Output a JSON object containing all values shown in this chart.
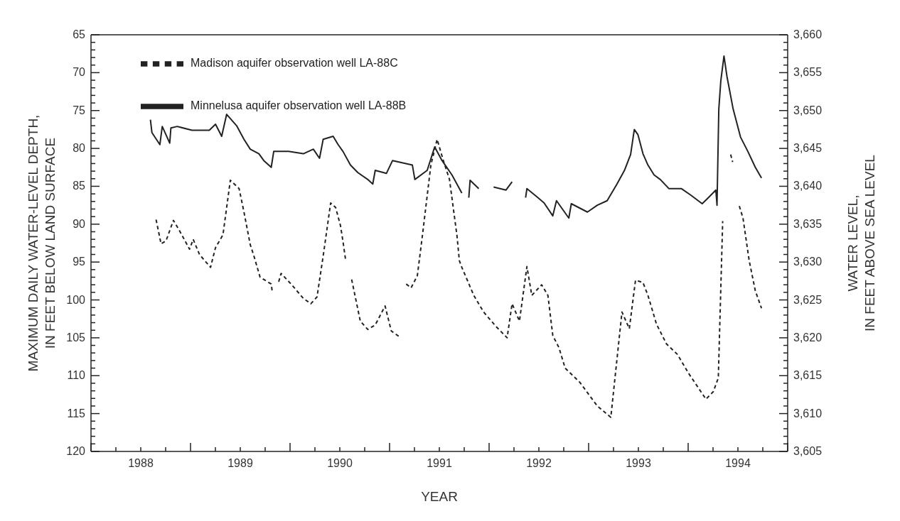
{
  "chart_data": {
    "type": "line",
    "xlabel": "YEAR",
    "ylabel": "MAXIMUM DAILY WATER-LEVEL DEPTH,\nIN FEET BELOW LAND SURFACE",
    "y2label": "WATER LEVEL,\nIN FEET ABOVE SEA LEVEL",
    "xlim": [
      1988,
      1995
    ],
    "xticks": [
      {
        "value": 1988,
        "label": null
      },
      {
        "value": 1988.25,
        "label": null
      },
      {
        "value": 1988.5,
        "label": "1988"
      },
      {
        "value": 1988.75,
        "label": null
      },
      {
        "value": 1989,
        "label": null
      },
      {
        "value": 1989.25,
        "label": null
      },
      {
        "value": 1989.5,
        "label": "1989"
      },
      {
        "value": 1989.75,
        "label": null
      },
      {
        "value": 1990,
        "label": null
      },
      {
        "value": 1990.25,
        "label": null
      },
      {
        "value": 1990.5,
        "label": "1990"
      },
      {
        "value": 1990.75,
        "label": null
      },
      {
        "value": 1991,
        "label": null
      },
      {
        "value": 1991.25,
        "label": null
      },
      {
        "value": 1991.5,
        "label": "1991"
      },
      {
        "value": 1991.75,
        "label": null
      },
      {
        "value": 1992,
        "label": null
      },
      {
        "value": 1992.25,
        "label": null
      },
      {
        "value": 1992.5,
        "label": "1992"
      },
      {
        "value": 1992.75,
        "label": null
      },
      {
        "value": 1993,
        "label": null
      },
      {
        "value": 1993.25,
        "label": null
      },
      {
        "value": 1993.5,
        "label": "1993"
      },
      {
        "value": 1993.75,
        "label": null
      },
      {
        "value": 1994,
        "label": null
      },
      {
        "value": 1994.25,
        "label": null
      },
      {
        "value": 1994.5,
        "label": "1994"
      },
      {
        "value": 1994.75,
        "label": null
      },
      {
        "value": 1995,
        "label": null
      }
    ],
    "ylim": [
      120,
      65
    ],
    "yticks": [
      65,
      {
        "value": 66,
        "label": null
      },
      {
        "value": 67,
        "label": null
      },
      {
        "value": 68,
        "label": null
      },
      {
        "value": 69,
        "label": null
      },
      70,
      {
        "value": 71,
        "label": null
      },
      {
        "value": 72,
        "label": null
      },
      {
        "value": 73,
        "label": null
      },
      {
        "value": 74,
        "label": null
      },
      75,
      {
        "value": 76,
        "label": null
      },
      {
        "value": 77,
        "label": null
      },
      {
        "value": 78,
        "label": null
      },
      {
        "value": 79,
        "label": null
      },
      80,
      {
        "value": 81,
        "label": null
      },
      {
        "value": 82,
        "label": null
      },
      {
        "value": 83,
        "label": null
      },
      {
        "value": 84,
        "label": null
      },
      85,
      {
        "value": 86,
        "label": null
      },
      {
        "value": 87,
        "label": null
      },
      {
        "value": 88,
        "label": null
      },
      {
        "value": 89,
        "label": null
      },
      90,
      {
        "value": 91,
        "label": null
      },
      {
        "value": 92,
        "label": null
      },
      {
        "value": 93,
        "label": null
      },
      {
        "value": 94,
        "label": null
      },
      95,
      {
        "value": 96,
        "label": null
      },
      {
        "value": 97,
        "label": null
      },
      {
        "value": 98,
        "label": null
      },
      {
        "value": 99,
        "label": null
      },
      100,
      {
        "value": 101,
        "label": null
      },
      {
        "value": 102,
        "label": null
      },
      {
        "value": 103,
        "label": null
      },
      {
        "value": 104,
        "label": null
      },
      105,
      {
        "value": 106,
        "label": null
      },
      {
        "value": 107,
        "label": null
      },
      {
        "value": 108,
        "label": null
      },
      {
        "value": 109,
        "label": null
      },
      110,
      {
        "value": 111,
        "label": null
      },
      {
        "value": 112,
        "label": null
      },
      {
        "value": 113,
        "label": null
      },
      {
        "value": 114,
        "label": null
      },
      115,
      {
        "value": 116,
        "label": null
      },
      {
        "value": 117,
        "label": null
      },
      {
        "value": 118,
        "label": null
      },
      {
        "value": 119,
        "label": null
      },
      120
    ],
    "y2lim": [
      3605,
      3660
    ],
    "y2ticks": [
      {
        "value": 3605,
        "label": "3,605"
      },
      {
        "value": 3606,
        "label": null
      },
      {
        "value": 3607,
        "label": null
      },
      {
        "value": 3608,
        "label": null
      },
      {
        "value": 3609,
        "label": null
      },
      {
        "value": 3610,
        "label": "3,610"
      },
      {
        "value": 3611,
        "label": null
      },
      {
        "value": 3612,
        "label": null
      },
      {
        "value": 3613,
        "label": null
      },
      {
        "value": 3614,
        "label": null
      },
      {
        "value": 3615,
        "label": "3,615"
      },
      {
        "value": 3616,
        "label": null
      },
      {
        "value": 3617,
        "label": null
      },
      {
        "value": 3618,
        "label": null
      },
      {
        "value": 3619,
        "label": null
      },
      {
        "value": 3620,
        "label": "3,620"
      },
      {
        "value": 3621,
        "label": null
      },
      {
        "value": 3622,
        "label": null
      },
      {
        "value": 3623,
        "label": null
      },
      {
        "value": 3624,
        "label": null
      },
      {
        "value": 3625,
        "label": "3,625"
      },
      {
        "value": 3626,
        "label": null
      },
      {
        "value": 3627,
        "label": null
      },
      {
        "value": 3628,
        "label": null
      },
      {
        "value": 3629,
        "label": null
      },
      {
        "value": 3630,
        "label": "3,630"
      },
      {
        "value": 3631,
        "label": null
      },
      {
        "value": 3632,
        "label": null
      },
      {
        "value": 3633,
        "label": null
      },
      {
        "value": 3634,
        "label": null
      },
      {
        "value": 3635,
        "label": "3,635"
      },
      {
        "value": 3636,
        "label": null
      },
      {
        "value": 3637,
        "label": null
      },
      {
        "value": 3638,
        "label": null
      },
      {
        "value": 3639,
        "label": null
      },
      {
        "value": 3640,
        "label": "3,640"
      },
      {
        "value": 3641,
        "label": null
      },
      {
        "value": 3642,
        "label": null
      },
      {
        "value": 3643,
        "label": null
      },
      {
        "value": 3644,
        "label": null
      },
      {
        "value": 3645,
        "label": "3,645"
      },
      {
        "value": 3646,
        "label": null
      },
      {
        "value": 3647,
        "label": null
      },
      {
        "value": 3648,
        "label": null
      },
      {
        "value": 3649,
        "label": null
      },
      {
        "value": 3650,
        "label": "3,650"
      },
      {
        "value": 3651,
        "label": null
      },
      {
        "value": 3652,
        "label": null
      },
      {
        "value": 3653,
        "label": null
      },
      {
        "value": 3654,
        "label": null
      },
      {
        "value": 3655,
        "label": "3,655"
      },
      {
        "value": 3656,
        "label": null
      },
      {
        "value": 3657,
        "label": null
      },
      {
        "value": 3658,
        "label": null
      },
      {
        "value": 3659,
        "label": null
      },
      {
        "value": 3660,
        "label": "3,660"
      }
    ],
    "grid": false,
    "legend": "top left",
    "marker": "none",
    "series": [
      {
        "name": "Minnelusa aquifer observation well LA-88B",
        "color": "#222222",
        "line_style": "solid",
        "x": [
          1988.597,
          1988.612,
          1988.692,
          1988.716,
          1988.791,
          1988.803,
          1988.866,
          1989.015,
          1989.189,
          1989.251,
          1989.313,
          1989.363,
          1989.463,
          1989.537,
          1989.6,
          1989.687,
          1989.736,
          1989.811,
          1989.836,
          1989.985,
          1990.134,
          1990.234,
          1990.296,
          1990.333,
          1990.433,
          1990.483,
          1990.532,
          1990.607,
          1990.682,
          1990.781,
          1990.831,
          1990.856,
          1990.968,
          1991.03,
          1991.229,
          1991.254,
          1991.378,
          1991.453,
          1991.527,
          1991.627,
          1991.726,
          1991.76,
          1991.796,
          1991.809,
          1991.896,
          1991.97,
          1992.045,
          1992.169,
          1992.231,
          1992.3,
          1992.367,
          1992.38,
          1992.491,
          1992.553,
          1992.64,
          1992.677,
          1992.801,
          1992.826,
          1992.988,
          1993.087,
          1993.186,
          1993.285,
          1993.36,
          1993.422,
          1993.459,
          1993.496,
          1993.546,
          1993.596,
          1993.658,
          1993.72,
          1993.806,
          1993.931,
          1994.03,
          1994.141,
          1994.203,
          1994.278,
          1994.29,
          1994.308,
          1994.328,
          1994.36,
          1994.39,
          1994.452,
          1994.526,
          1994.6,
          1994.675,
          1994.737
        ],
        "values": [
          76.2,
          77.9,
          79.5,
          77.1,
          79.3,
          77.3,
          77.1,
          77.6,
          77.6,
          76.8,
          78.4,
          75.5,
          77.0,
          78.8,
          80.1,
          80.7,
          81.6,
          82.5,
          80.4,
          80.4,
          80.7,
          80.1,
          81.3,
          78.8,
          78.4,
          79.5,
          80.4,
          82.2,
          83.2,
          84.1,
          84.7,
          82.9,
          83.3,
          81.6,
          82.2,
          84.1,
          82.9,
          79.8,
          81.6,
          83.5,
          85.9,
          null,
          86.5,
          84.2,
          85.3,
          null,
          85.1,
          85.5,
          84.4,
          null,
          86.5,
          85.3,
          86.5,
          87.2,
          88.9,
          86.9,
          89.2,
          87.3,
          88.4,
          87.5,
          86.9,
          84.7,
          82.9,
          80.8,
          77.5,
          78.2,
          80.7,
          82.2,
          83.5,
          84.1,
          85.3,
          85.3,
          86.2,
          87.3,
          86.5,
          85.5,
          87.5,
          74.8,
          71.1,
          67.8,
          70.5,
          74.8,
          78.5,
          80.4,
          82.5,
          83.9
        ]
      },
      {
        "name": "Madison aquifer observation well LA-88C",
        "color": "#222222",
        "line_style": "dashed",
        "x": [
          1988.654,
          1988.704,
          1988.754,
          1988.828,
          1988.891,
          1988.99,
          1989.027,
          1989.09,
          1989.201,
          1989.251,
          1989.326,
          1989.4,
          1989.488,
          1989.537,
          1989.6,
          1989.637,
          1989.699,
          1989.811,
          1989.823,
          1989.85,
          1989.886,
          1989.91,
          1990.01,
          1990.134,
          1990.209,
          1990.271,
          1990.333,
          1990.408,
          1990.458,
          1990.507,
          1990.532,
          1990.557,
          1990.59,
          1990.619,
          1990.706,
          1990.781,
          1990.856,
          1990.955,
          1991.017,
          1991.104,
          1991.13,
          1991.167,
          1991.216,
          1991.279,
          1991.328,
          1991.415,
          1991.478,
          1991.54,
          1991.602,
          1991.677,
          1991.701,
          1991.726,
          1991.846,
          1991.945,
          1992.069,
          1992.181,
          1992.231,
          1992.305,
          1992.38,
          1992.429,
          1992.528,
          1992.591,
          1992.64,
          1992.702,
          1992.764,
          1992.913,
          1993.087,
          1993.223,
          1993.285,
          1993.335,
          1993.409,
          1993.471,
          1993.546,
          1993.596,
          1993.682,
          1993.782,
          1993.893,
          1994.005,
          1994.179,
          1994.253,
          1994.303,
          1994.328,
          1994.347,
          1994.39,
          1994.427,
          1994.447,
          1994.48,
          1994.514,
          1994.551,
          1994.613,
          1994.675,
          1994.737
        ],
        "values": [
          89.4,
          92.6,
          92.2,
          89.5,
          90.9,
          93.3,
          92.0,
          94.0,
          95.7,
          93.1,
          91.4,
          84.2,
          85.3,
          88.4,
          92.7,
          94.2,
          97.0,
          97.9,
          99.1,
          null,
          97.6,
          96.5,
          97.9,
          99.8,
          100.5,
          99.6,
          94.2,
          87.2,
          87.8,
          90.2,
          92.3,
          94.6,
          null,
          97.3,
          102.8,
          103.9,
          103.3,
          100.8,
          104.1,
          104.9,
          null,
          97.9,
          98.4,
          96.8,
          91.7,
          82.2,
          78.8,
          81.6,
          84.1,
          91.5,
          94.8,
          95.7,
          99.4,
          101.6,
          103.5,
          105.0,
          100.5,
          102.8,
          95.6,
          99.4,
          98.0,
          99.4,
          104.7,
          106.3,
          109.0,
          110.9,
          114.0,
          115.5,
          107.8,
          101.6,
          103.8,
          97.4,
          97.7,
          99.4,
          103.2,
          105.8,
          107.2,
          109.7,
          113.1,
          112.1,
          110.3,
          98.5,
          89.6,
          null,
          80.8,
          81.8,
          null,
          87.6,
          89.2,
          94.8,
          98.8,
          101.1
        ]
      }
    ]
  }
}
